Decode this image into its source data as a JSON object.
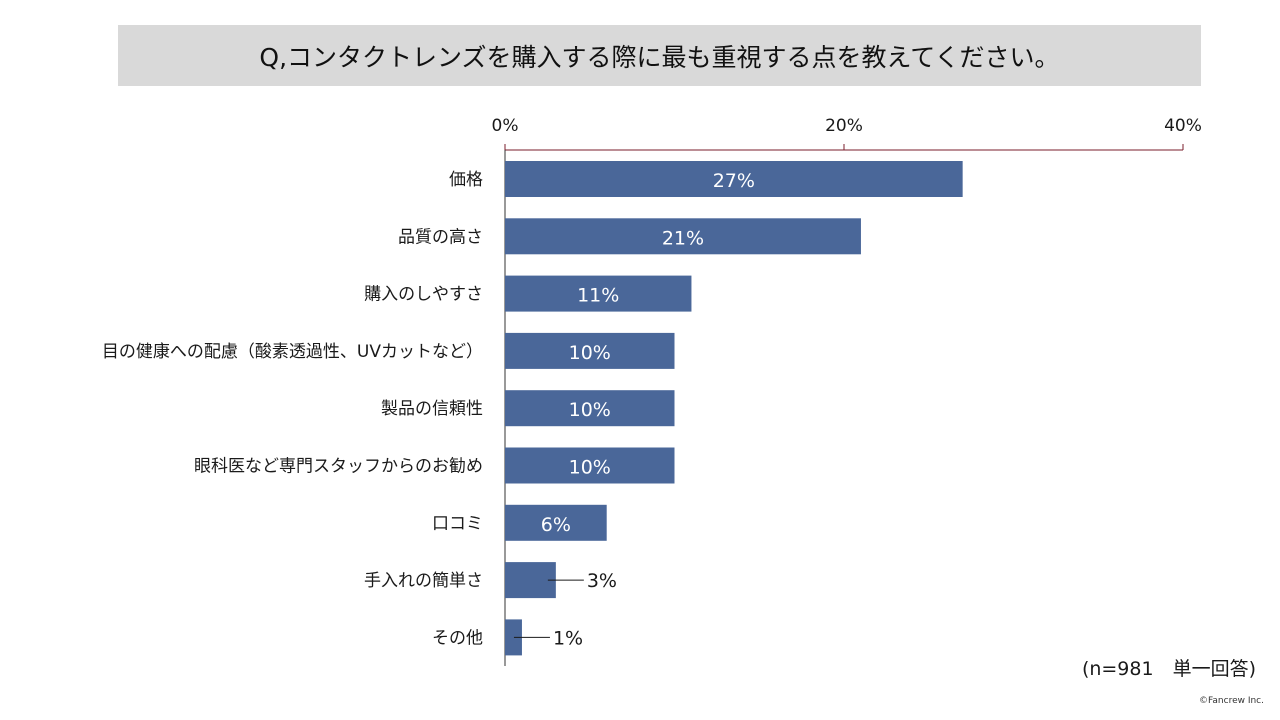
{
  "title": "Q,コンタクトレンズを購入する際に最も重視する点を教えてください。",
  "note": "(n=981　単一回答)",
  "copyright": "©Fancrew Inc.",
  "colors": {
    "bar": "#4a6799",
    "axis": "#7a1c2b",
    "title_band": "#d9d9d9"
  },
  "chart_data": {
    "type": "bar",
    "orientation": "horizontal",
    "categories": [
      "価格",
      "品質の高さ",
      "購入のしやすさ",
      "目の健康への配慮（酸素透過性、UVカットなど）",
      "製品の信頼性",
      "眼科医など専門スタッフからのお勧め",
      "口コミ",
      "手入れの簡単さ",
      "その他"
    ],
    "values": [
      27,
      21,
      11,
      10,
      10,
      10,
      6,
      3,
      1
    ],
    "value_labels": [
      "27%",
      "21%",
      "11%",
      "10%",
      "10%",
      "10%",
      "6%",
      "3%",
      "1%"
    ],
    "xlim": [
      0,
      40
    ],
    "ticks": [
      0,
      20,
      40
    ],
    "tick_labels": [
      "0%",
      "20%",
      "40%"
    ],
    "axis_position": "top",
    "grid": false,
    "legend": "none"
  }
}
